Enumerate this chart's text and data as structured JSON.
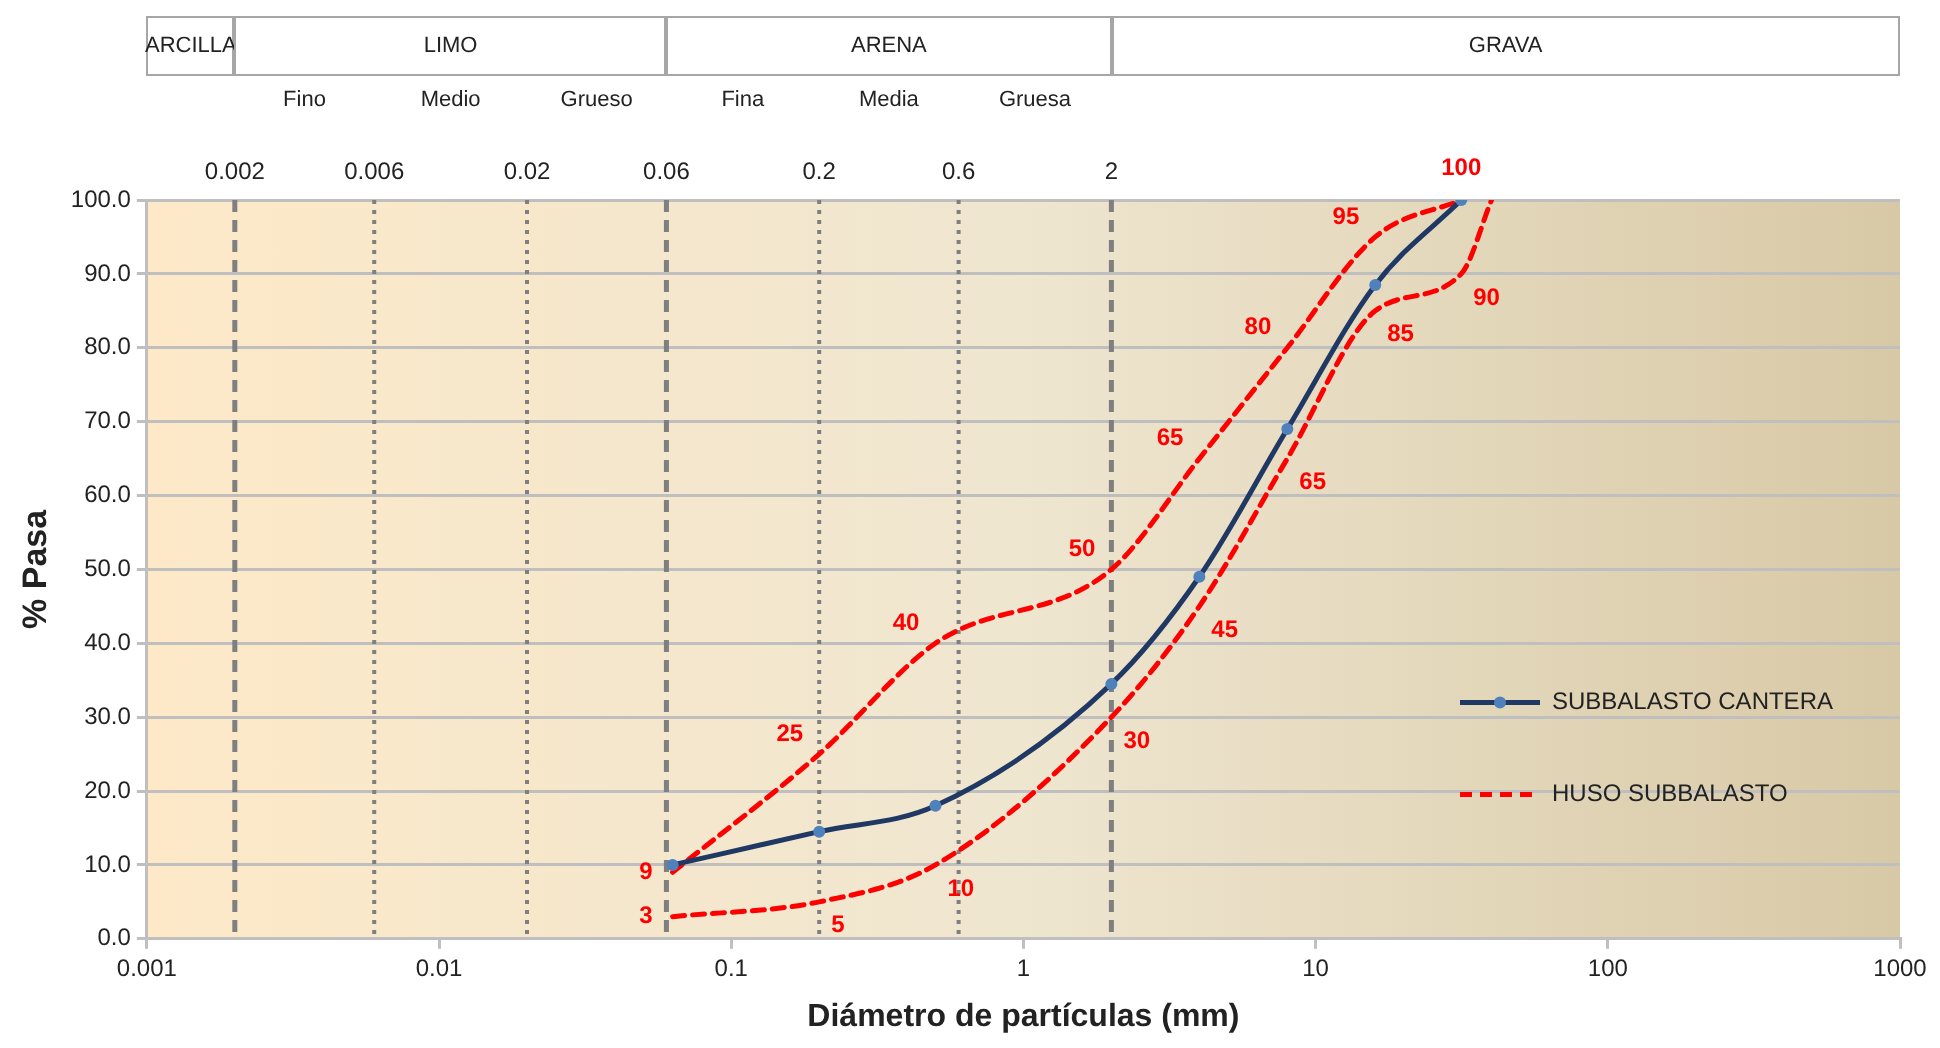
{
  "chart_data": {
    "type": "line",
    "xlabel": "Diámetro de partículas (mm)",
    "ylabel": "% Pasa",
    "log": "x",
    "xlim": [
      0.001,
      1000
    ],
    "xticks": [
      0.001,
      0.01,
      0.1,
      1,
      10,
      100,
      1000
    ],
    "ylim": [
      0,
      100
    ],
    "yticks": [
      {
        "value": 0,
        "label": "0.0"
      },
      {
        "value": 10,
        "label": "10.0"
      },
      {
        "value": 20,
        "label": "20.0"
      },
      {
        "value": 30,
        "label": "30.0"
      },
      {
        "value": 40,
        "label": "40.0"
      },
      {
        "value": 50,
        "label": "50.0"
      },
      {
        "value": 60,
        "label": "60.0"
      },
      {
        "value": 70,
        "label": "70.0"
      },
      {
        "value": 80,
        "label": "80.0"
      },
      {
        "value": 90,
        "label": "90.0"
      },
      {
        "value": 100,
        "label": "100.0"
      }
    ],
    "grid": "y",
    "legend": "right",
    "series": [
      {
        "name": "SUBBALASTO CANTERA",
        "color": "#1f3864",
        "marker": "circle",
        "line_style": "solid",
        "x": [
          0.063,
          0.2,
          0.5,
          2,
          4,
          8,
          16,
          31.5
        ],
        "values": [
          10,
          14.5,
          18,
          34.5,
          49,
          69,
          88.5,
          100
        ]
      },
      {
        "name": "HUSO SUBBALASTO",
        "color": "#ff0000",
        "marker": "none",
        "line_style": "dashed",
        "x": [
          0.063,
          0.2,
          0.5,
          2,
          4,
          8,
          16,
          31.5
        ],
        "values": [
          9,
          25,
          40,
          50,
          65,
          80,
          95,
          100
        ],
        "value_labels": [
          "9",
          "25",
          "40",
          "50",
          "65",
          "80",
          "95",
          "100"
        ]
      },
      {
        "color": "#ff0000",
        "marker": "none",
        "line_style": "dashed",
        "x": [
          0.063,
          0.2,
          0.5,
          2,
          4,
          8,
          16,
          31.5,
          40
        ],
        "values": [
          3,
          5,
          10,
          30,
          45,
          65,
          85,
          90,
          100
        ],
        "value_labels": [
          "3",
          "5",
          "10",
          "30",
          "45",
          "65",
          "85",
          "90",
          null
        ]
      }
    ],
    "ref_lines": [
      {
        "axis": "x",
        "value": 0.002,
        "label": "0.002",
        "line_style": "dashed",
        "color": "#7f7f7f"
      },
      {
        "axis": "x",
        "value": 0.006,
        "label": "0.006",
        "line_style": "dotted",
        "color": "#7f7f7f"
      },
      {
        "axis": "x",
        "value": 0.02,
        "label": "0.02",
        "line_style": "dotted",
        "color": "#7f7f7f"
      },
      {
        "axis": "x",
        "value": 0.06,
        "label": "0.06",
        "line_style": "dashed",
        "color": "#7f7f7f"
      },
      {
        "axis": "x",
        "value": 0.2,
        "label": "0.2",
        "line_style": "dotted",
        "color": "#7f7f7f"
      },
      {
        "axis": "x",
        "value": 0.6,
        "label": "0.6",
        "line_style": "dotted",
        "color": "#7f7f7f"
      },
      {
        "axis": "x",
        "value": 2,
        "label": "2",
        "line_style": "dashed",
        "color": "#7f7f7f"
      }
    ],
    "annotations": [
      "ARCILLA",
      "LIMO",
      "ARENA",
      "GRAVA",
      "Fino",
      "Medio",
      "Grueso",
      "Fina",
      "Media",
      "Gruesa"
    ]
  }
}
